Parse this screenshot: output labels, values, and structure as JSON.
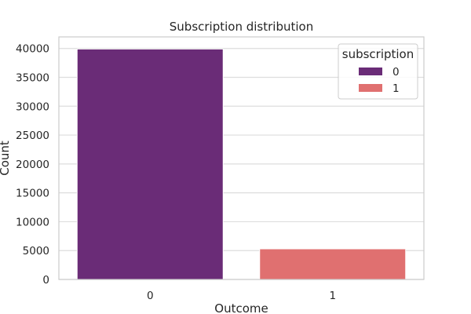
{
  "chart_data": {
    "type": "bar",
    "title": "Subscription distribution",
    "xlabel": "Outcome",
    "ylabel": "Count",
    "categories": [
      "0",
      "1"
    ],
    "series": [
      {
        "name": "0",
        "values": [
          39900,
          null
        ],
        "color": "#6a2c77"
      },
      {
        "name": "1",
        "values": [
          null,
          5300
        ],
        "color": "#e07070"
      }
    ],
    "ylim": [
      0,
      42000
    ],
    "yticks": [
      0,
      5000,
      10000,
      15000,
      20000,
      25000,
      30000,
      35000,
      40000
    ],
    "ytick_labels": [
      "0",
      "5000",
      "10000",
      "15000",
      "20000",
      "25000",
      "30000",
      "35000",
      "40000"
    ],
    "grid": true,
    "legend": {
      "title": "subscription",
      "placement": "top-right",
      "entries": [
        "0",
        "1"
      ]
    }
  }
}
